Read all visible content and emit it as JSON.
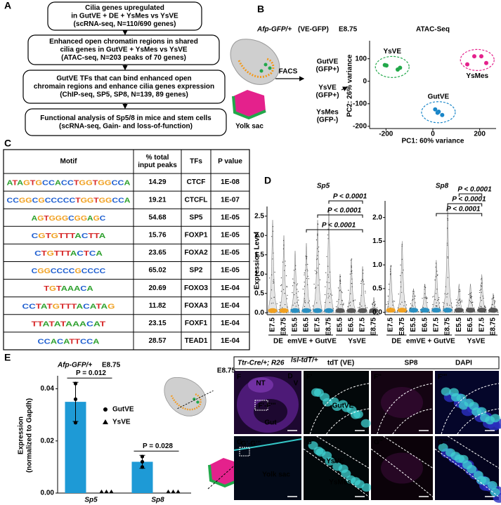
{
  "panel_labels": [
    "A",
    "B",
    "C",
    "D",
    "E"
  ],
  "workflow": {
    "steps": [
      {
        "lines": [
          "Cilia genes upregulated",
          "in GutVE + DE + YsMes vs YsVE"
        ],
        "note": "(scRNA-seq, N=110/690 genes)",
        "note_color": "#7b2d9b"
      },
      {
        "lines": [
          "Enhanced open chromatin regions in shared",
          "cilia genes in GutVE + YsMes vs YsVE"
        ],
        "note": "(ATAC-seq, N=203 peaks of 70 genes)",
        "note_color": "#f0a030"
      },
      {
        "lines": [
          "GutVE TFs that can bind enhanced open",
          "chromain regions and enhance cilia genes expression"
        ],
        "note": "(ChIP-seq, SP5, SP8, N=139, 89 genes)",
        "note_color": "#21a345"
      },
      {
        "lines": [
          "Functional analysis of Sp5/8 in mice and stem cells"
        ],
        "note": "(scRNA-seq, Gain- and loss-of-function)",
        "note_color": "#1fa8d8"
      }
    ]
  },
  "facs": {
    "genotype": "Afp-GFP/+",
    "reporter": "(VE-GFP)",
    "stage": "E8.75",
    "method": "FACS",
    "tissue": "Yolk sac",
    "populations": [
      {
        "name": "GutVE",
        "marker": "(GFP+)",
        "color": "#1a86c8"
      },
      {
        "name": "YsVE",
        "marker": "(GFP+)",
        "color": "#22a84a"
      },
      {
        "name": "YsMes",
        "marker": "(GFP-)",
        "color": "#e4218c"
      }
    ]
  },
  "motif_table": {
    "header": [
      "Motif",
      [
        "% total",
        "input peaks"
      ],
      "TFs",
      "P value"
    ],
    "rows": [
      [
        "ATAGTGCCACCTGGTGGCCA",
        14.29,
        "CTCF",
        "1E-08"
      ],
      [
        "CCGGCGCCCCCTGGTGGCCA",
        19.21,
        "CTCFL",
        "1E-07"
      ],
      [
        "AGTGGGCGGAGC",
        54.68,
        "SP5",
        "1E-05"
      ],
      [
        "CGTGTTTACTTA",
        15.76,
        "FOXP1",
        "1E-05"
      ],
      [
        "CTGTTTACTCA",
        23.65,
        "FOXA2",
        "1E-05"
      ],
      [
        "CGGCCCCGCCCC",
        65.02,
        "SP2",
        "1E-05"
      ],
      [
        "TGTAAACA",
        20.69,
        "FOXO3",
        "1E-04"
      ],
      [
        "CCTATGTTTACATAG",
        11.82,
        "FOXA3",
        "1E-04"
      ],
      [
        "TTATATAAACAT",
        23.15,
        "FOXF1",
        "1E-04"
      ],
      [
        "CCACATTCCA",
        28.57,
        "TEAD1",
        "1E-04"
      ]
    ]
  },
  "chart_data": [
    {
      "type": "scatter",
      "title": "ATAC-Seq",
      "xlabel": "PC1: 60% variance",
      "ylabel": "PC2: 26% variance",
      "xlim": [
        -270,
        270
      ],
      "ylim": [
        -210,
        180
      ],
      "xticks": [
        -200,
        0,
        200
      ],
      "yticks": [
        -200,
        -100,
        0,
        100
      ],
      "series": [
        {
          "name": "YsVE",
          "color": "#22a84a",
          "x": [
            -205,
            -198,
            -150,
            -140
          ],
          "y": [
            72,
            70,
            52,
            60
          ]
        },
        {
          "name": "GutVE",
          "color": "#1a86c8",
          "x": [
            10,
            25,
            40,
            20
          ],
          "y": [
            -125,
            -135,
            -150,
            -140
          ]
        },
        {
          "name": "YsMes",
          "color": "#e4218c",
          "x": [
            147,
            177,
            207,
            228
          ],
          "y": [
            75,
            111,
            111,
            81
          ]
        }
      ]
    },
    {
      "type": "violin",
      "title": "Sp5",
      "ylabel": "Expression Level",
      "ylim": [
        -0.05,
        2.75
      ],
      "yticks": [
        {
          "value": 0,
          "label": "0.0"
        },
        0.5,
        {
          "value": 1,
          "label": "1.0"
        },
        1.5,
        {
          "value": 2,
          "label": "2.0"
        },
        2.5
      ],
      "groups": [
        {
          "name": "DE",
          "color": "#f0a020",
          "categories": [
            "E7.5",
            "E8.75"
          ],
          "max": [
            2.4,
            2.0
          ]
        },
        {
          "name": "emVE + GutVE",
          "color": "#2a8fc0",
          "categories": [
            "E5.5",
            "E6.5",
            "E7.5",
            "E8.75"
          ],
          "max": [
            1.6,
            1.8,
            2.4,
            2.7
          ]
        },
        {
          "name": "YsVE",
          "color": "#555555",
          "categories": [
            "E5.5",
            "E6.5",
            "E7.5",
            "E8.75"
          ],
          "max": [
            1.0,
            1.4,
            1.2,
            0.4
          ]
        }
      ],
      "annotations": [
        "P < 0.0001",
        "P < 0.0001",
        "P < 0.0001"
      ]
    },
    {
      "type": "violin",
      "title": "Sp8",
      "ylim": [
        -0.05,
        2.35
      ],
      "yticks": [
        {
          "value": 0,
          "label": "0.0"
        },
        0.5,
        {
          "value": 1,
          "label": "1.0"
        },
        1.5,
        {
          "value": 2,
          "label": "2.0"
        }
      ],
      "groups": [
        {
          "name": "DE",
          "color": "#f0a020",
          "categories": [
            "E7.5",
            "E8.75"
          ],
          "max": [
            1.0,
            1.5
          ]
        },
        {
          "name": "emVE + GutVE",
          "color": "#2a8fc0",
          "categories": [
            "E5.5",
            "E6.5",
            "E7.5",
            "E8.75"
          ],
          "max": [
            0.5,
            0.6,
            1.1,
            2.2
          ]
        },
        {
          "name": "YsVE",
          "color": "#555555",
          "categories": [
            "E5.5",
            "E6.5",
            "E7.5",
            "E8.75"
          ],
          "max": [
            0.6,
            0.6,
            0.8,
            0.4
          ]
        }
      ],
      "annotations": [
        "P < 0.0001",
        "P < 0.0001",
        "P < 0.0001"
      ]
    },
    {
      "type": "bar",
      "title": "Afp-GFP/+",
      "subtitle": "E8.75",
      "ylabel": [
        "Expression",
        "(normalized to Gapdh)"
      ],
      "categories": [
        "Sp5",
        "Sp8"
      ],
      "ylim": [
        0,
        0.045
      ],
      "yticks": [
        {
          "value": 0,
          "label": "0.00"
        },
        0.02,
        0.04
      ],
      "series": [
        {
          "name": "GutVE",
          "color": "#1e9ad6",
          "values": [
            0.035,
            0.012
          ],
          "errors": [
            0.0075,
            0.0025
          ],
          "points": [
            [
              0.042,
              0.036,
              0.027
            ],
            [
              0.014,
              0.012,
              0.01
            ]
          ]
        },
        {
          "name": "YsVE",
          "color": "#22a84a",
          "values": [
            0,
            0
          ],
          "points": [
            [
              0,
              0,
              0
            ],
            [
              0,
              0,
              0
            ]
          ]
        }
      ],
      "annotations": [
        "P = 0.012",
        "P = 0.028"
      ]
    }
  ],
  "imaging": {
    "stage": "E8.75",
    "genotype": "Ttr-Cre/+; R26",
    "genotype_sup": "lsl-tdT/+",
    "channels": [
      {
        "name": "tdT (VE)",
        "color": "#35c8c8"
      },
      {
        "name": "SP8",
        "color": "#d02ad0"
      },
      {
        "name": "DAPI",
        "color": "#3038d8"
      }
    ],
    "panels": [
      {
        "label": "F",
        "texts": [
          "NT",
          "F'-F'''",
          "Gut",
          "D",
          "V"
        ]
      },
      {
        "label": "F'",
        "texts": [
          "GutVE"
        ]
      },
      {
        "label": "F''"
      },
      {
        "label": "F'''"
      },
      {
        "label": "G",
        "texts": [
          "G'-G'''",
          "Yolk sac"
        ]
      },
      {
        "label": "G'",
        "texts": [
          "YsVE",
          "YsMes"
        ]
      },
      {
        "label": "G''"
      },
      {
        "label": "G'''"
      }
    ]
  }
}
